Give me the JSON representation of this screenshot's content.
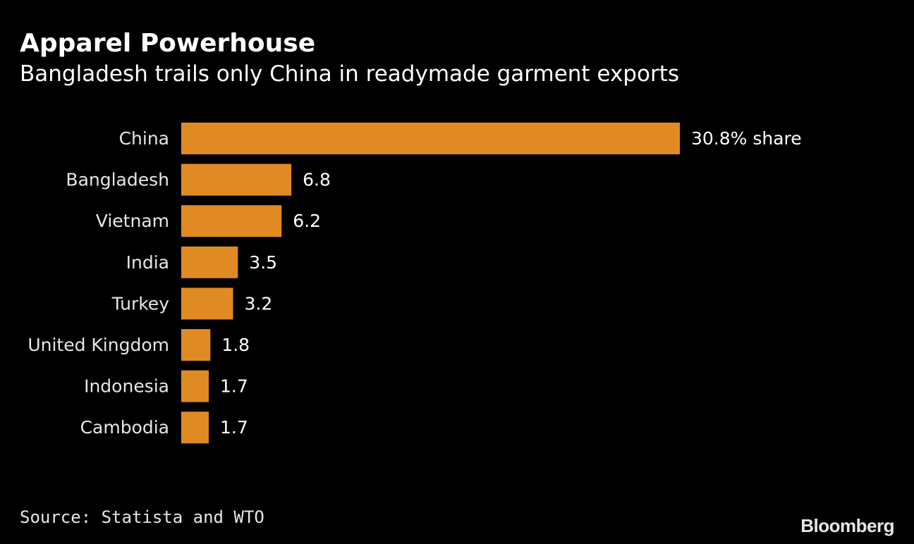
{
  "chart_data": {
    "type": "bar",
    "orientation": "horizontal",
    "title": "Apparel Powerhouse",
    "subtitle": "Bangladesh trails only China in readymade garment exports",
    "categories": [
      "China",
      "Bangladesh",
      "Vietnam",
      "India",
      "Turkey",
      "United Kingdom",
      "Indonesia",
      "Cambodia"
    ],
    "values": [
      30.8,
      6.8,
      6.2,
      3.5,
      3.2,
      1.8,
      1.7,
      1.7
    ],
    "value_labels": [
      "30.8% share",
      "6.8",
      "6.2",
      "3.5",
      "3.2",
      "1.8",
      "1.7",
      "1.7"
    ],
    "xlabel": "",
    "ylabel": "",
    "xlim": [
      0,
      30.8
    ],
    "grid": false,
    "legend": "none",
    "bar_color": "#e08a23",
    "background": "#000000"
  },
  "source": "Source: Statista and WTO",
  "brand": "Bloomberg"
}
